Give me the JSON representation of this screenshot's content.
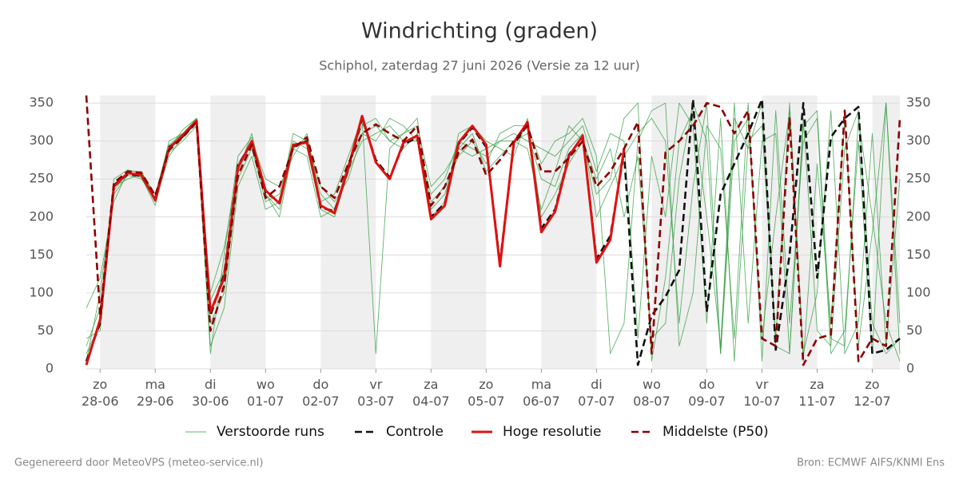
{
  "chart_data": {
    "type": "line",
    "title": "Windrichting (graden)",
    "subtitle": "Schiphol, zaterdag 27 juni 2026 (Versie za 12 uur)",
    "footer_left": "Gegenereerd door MeteoVPS (meteo-service.nl)",
    "footer_right": "Bron: ECMWF AIFS/KNMI Ens",
    "x": [
      0,
      6,
      12,
      18,
      24,
      30,
      36,
      42,
      48,
      54,
      60,
      66,
      72,
      78,
      84,
      90,
      96,
      102,
      108,
      114,
      120,
      126,
      132,
      138,
      144,
      150,
      156,
      162,
      168,
      174,
      180,
      186,
      192,
      198,
      204,
      210,
      216,
      222,
      228,
      234,
      240,
      246,
      252,
      258,
      264,
      270,
      276,
      282,
      288,
      294,
      300,
      306,
      312,
      318,
      324,
      330,
      336,
      342,
      348,
      354
    ],
    "xlim": [
      0,
      354
    ],
    "xticks": [
      {
        "value": 6,
        "label": "zo 28-06"
      },
      {
        "value": 30,
        "label": "ma 29-06"
      },
      {
        "value": 54,
        "label": "di 30-06"
      },
      {
        "value": 78,
        "label": "wo 01-07"
      },
      {
        "value": 102,
        "label": "do 02-07"
      },
      {
        "value": 126,
        "label": "vr 03-07"
      },
      {
        "value": 150,
        "label": "za 04-07"
      },
      {
        "value": 174,
        "label": "zo 05-07"
      },
      {
        "value": 198,
        "label": "ma 06-07"
      },
      {
        "value": 222,
        "label": "di 07-07"
      },
      {
        "value": 246,
        "label": "wo 08-07"
      },
      {
        "value": 270,
        "label": "do 09-07"
      },
      {
        "value": 294,
        "label": "vr 10-07"
      },
      {
        "value": 318,
        "label": "za 11-07"
      },
      {
        "value": 342,
        "label": "zo 12-07"
      }
    ],
    "ylim": [
      0,
      360
    ],
    "yticks": [
      0,
      50,
      100,
      150,
      200,
      250,
      300,
      350
    ],
    "grid": true,
    "alternate_day_shading": true,
    "legend": "bottom",
    "series": [
      {
        "name": "Verstoorde runs",
        "color": "#2e9a3c",
        "style": "thin",
        "members": [
          [
            30,
            80,
            230,
            255,
            250,
            225,
            285,
            300,
            320,
            20,
            150,
            280,
            305,
            230,
            210,
            290,
            300,
            230,
            210,
            270,
            320,
            330,
            300,
            290,
            310,
            210,
            230,
            290,
            310,
            260,
            280,
            300,
            310,
            250,
            240,
            290,
            310,
            200,
            240,
            280,
            310,
            330,
            300,
            60,
            240,
            350,
            20,
            300,
            330,
            40,
            200,
            340,
            10,
            270,
            60,
            330,
            30,
            180,
            350,
            20
          ],
          [
            20,
            60,
            250,
            262,
            258,
            230,
            295,
            310,
            330,
            60,
            100,
            250,
            290,
            220,
            230,
            300,
            290,
            210,
            200,
            260,
            300,
            310,
            320,
            300,
            300,
            230,
            250,
            300,
            290,
            280,
            300,
            310,
            300,
            290,
            280,
            300,
            320,
            260,
            310,
            300,
            40,
            280,
            200,
            350,
            320,
            60,
            330,
            10,
            300,
            320,
            40,
            350,
            20,
            100,
            340,
            20,
            60,
            310,
            30,
            250
          ],
          [
            10,
            100,
            240,
            250,
            256,
            220,
            280,
            305,
            325,
            90,
            130,
            270,
            300,
            250,
            240,
            280,
            310,
            220,
            230,
            280,
            330,
            20,
            290,
            310,
            330,
            200,
            220,
            310,
            320,
            300,
            290,
            280,
            330,
            200,
            230,
            270,
            300,
            230,
            250,
            330,
            350,
            10,
            120,
            300,
            340,
            200,
            30,
            350,
            60,
            300,
            310,
            20,
            330,
            50,
            30,
            290,
            340,
            60,
            20,
            40
          ],
          [
            40,
            50,
            235,
            258,
            252,
            215,
            290,
            315,
            330,
            30,
            80,
            240,
            280,
            210,
            220,
            310,
            300,
            240,
            220,
            250,
            310,
            300,
            330,
            320,
            300,
            220,
            240,
            280,
            300,
            270,
            310,
            320,
            320,
            270,
            300,
            310,
            330,
            280,
            20,
            60,
            300,
            340,
            350,
            30,
            100,
            320,
            290,
            40,
            350,
            10,
            340,
            60,
            300,
            330,
            20,
            50,
            300,
            20,
            350,
            60
          ],
          [
            80,
            120,
            220,
            260,
            260,
            225,
            300,
            310,
            320,
            100,
            160,
            260,
            310,
            230,
            200,
            290,
            280,
            200,
            210,
            270,
            310,
            320,
            300,
            310,
            320,
            240,
            260,
            290,
            280,
            290,
            300,
            300,
            290,
            210,
            260,
            320,
            300,
            250,
            290,
            200,
            280,
            40,
            60,
            250,
            350,
            300,
            20,
            330,
            290,
            350,
            30,
            20,
            320,
            340,
            40,
            30,
            330,
            200,
            60,
            10
          ]
        ]
      },
      {
        "name": "Controle",
        "color": "#111111",
        "style": "dashed",
        "values": [
          10,
          60,
          242,
          256,
          254,
          224,
          292,
          306,
          326,
          70,
          125,
          268,
          298,
          232,
          220,
          293,
          300,
          212,
          208,
          262,
          330,
          275,
          252,
          295,
          305,
          200,
          218,
          296,
          318,
          292,
          140,
          295,
          322,
          185,
          210,
          282,
          305,
          145,
          175,
          285,
          5,
          70,
          95,
          130,
          355,
          75,
          230,
          270,
          310,
          355,
          25,
          150,
          350,
          120,
          305,
          330,
          345,
          20,
          25,
          40
        ]
      },
      {
        "name": "Hoge resolutie",
        "color": "#e01010",
        "style": "solid",
        "values": [
          5,
          65,
          240,
          258,
          255,
          222,
          290,
          308,
          327,
          75,
          120,
          265,
          300,
          235,
          218,
          295,
          298,
          215,
          205,
          265,
          333,
          272,
          250,
          298,
          307,
          197,
          215,
          298,
          320,
          295,
          135,
          298,
          325,
          180,
          207,
          280,
          307,
          140,
          170,
          290,
          null,
          null,
          null,
          null,
          null,
          null,
          null,
          null,
          null,
          null,
          null,
          null,
          null,
          null,
          null,
          null,
          null,
          null,
          null,
          null
        ]
      },
      {
        "name": "Middelste (P50)",
        "color": "#8b0000",
        "style": "dashed",
        "values": [
          360,
          70,
          245,
          260,
          258,
          228,
          288,
          305,
          325,
          50,
          110,
          255,
          295,
          225,
          240,
          290,
          305,
          240,
          225,
          270,
          310,
          322,
          310,
          300,
          320,
          215,
          240,
          285,
          302,
          255,
          275,
          300,
          320,
          260,
          260,
          278,
          300,
          240,
          260,
          290,
          325,
          20,
          285,
          300,
          320,
          350,
          345,
          310,
          340,
          40,
          30,
          330,
          5,
          40,
          45,
          340,
          10,
          40,
          30,
          330
        ]
      }
    ]
  }
}
